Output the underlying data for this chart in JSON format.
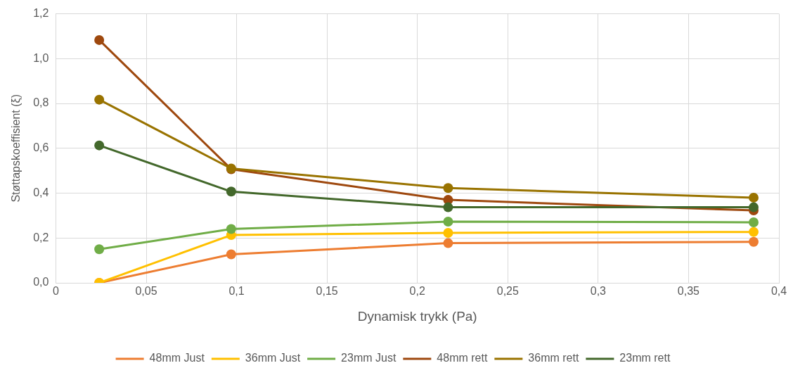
{
  "chart_data": {
    "type": "line",
    "xlabel": "Dynamisk trykk (Pa)",
    "ylabel": "Støttapskoeffisient (ξ)",
    "x": [
      0.024,
      0.097,
      0.217,
      0.386
    ],
    "series": [
      {
        "name": "48mm Just",
        "color": "#ed7d31",
        "values": [
          0,
          0.127,
          0.177,
          0.183
        ]
      },
      {
        "name": "36mm Just",
        "color": "#ffc000",
        "values": [
          0,
          0.213,
          0.223,
          0.227
        ]
      },
      {
        "name": "23mm Just",
        "color": "#70ad47",
        "values": [
          0.15,
          0.24,
          0.273,
          0.27
        ]
      },
      {
        "name": "48mm rett",
        "color": "#9e480e",
        "values": [
          1.083,
          0.507,
          0.37,
          0.323
        ]
      },
      {
        "name": "36mm rett",
        "color": "#997300",
        "values": [
          0.817,
          0.51,
          0.423,
          0.38
        ]
      },
      {
        "name": "23mm rett",
        "color": "#43682b",
        "values": [
          0.613,
          0.407,
          0.337,
          0.337
        ]
      }
    ],
    "xlim": [
      0,
      0.4
    ],
    "xticks": [
      0,
      {
        "value": 0.05,
        "label": "0,05"
      },
      {
        "value": 0.1,
        "label": "0,1"
      },
      {
        "value": 0.15,
        "label": "0,15"
      },
      {
        "value": 0.2,
        "label": "0,2"
      },
      {
        "value": 0.25,
        "label": "0,25"
      },
      {
        "value": 0.3,
        "label": "0,3"
      },
      {
        "value": 0.35,
        "label": "0,35"
      },
      {
        "value": 0.4,
        "label": "0,4"
      }
    ],
    "ylim": [
      0,
      1.2
    ],
    "yticks": [
      {
        "value": 0,
        "label": "0,0"
      },
      {
        "value": 0.2,
        "label": "0,2"
      },
      {
        "value": 0.4,
        "label": "0,4"
      },
      {
        "value": 0.6,
        "label": "0,6"
      },
      {
        "value": 0.8,
        "label": "0,8"
      },
      {
        "value": 1,
        "label": "1,0"
      },
      {
        "value": 1.2,
        "label": "1,2"
      }
    ],
    "grid": true,
    "legend": "bottom",
    "marker": "circle",
    "line_style": "solid"
  }
}
